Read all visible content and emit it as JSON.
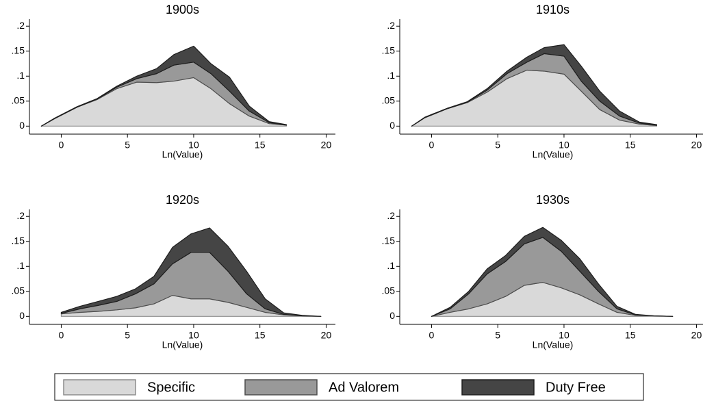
{
  "chart_data": [
    {
      "type": "area",
      "stacked": true,
      "title": "1900s",
      "xlabel": "Ln(Value)",
      "x": [
        -1.5,
        -0.5,
        1.2,
        2.7,
        4.2,
        5.7,
        7.2,
        8.5,
        10,
        11.3,
        12.7,
        14.2,
        15.7,
        17
      ],
      "series": [
        {
          "name": "Specific",
          "color": "#d9d9d9",
          "values": [
            0,
            0.015,
            0.038,
            0.053,
            0.075,
            0.088,
            0.087,
            0.09,
            0.097,
            0.075,
            0.045,
            0.02,
            0.005,
            0.002
          ]
        },
        {
          "name": "Ad Valorem",
          "color": "#999999",
          "values": [
            0,
            0,
            0,
            0.001,
            0.003,
            0.007,
            0.018,
            0.032,
            0.031,
            0.03,
            0.025,
            0.01,
            0.002,
            0
          ]
        },
        {
          "name": "Duty Free",
          "color": "#454545",
          "values": [
            0,
            0.001,
            0.001,
            0.001,
            0.002,
            0.005,
            0.01,
            0.021,
            0.032,
            0.02,
            0.028,
            0.01,
            0.002,
            0.001
          ]
        }
      ],
      "xlim": [
        -2.4,
        20.7
      ],
      "xticks": [
        0,
        5,
        10,
        15,
        20
      ],
      "ylim": [
        -0.016,
        0.214
      ],
      "yticks": [
        0,
        {
          "value": 0.05,
          "label": ".05"
        },
        {
          "value": 0.1,
          "label": ".1"
        },
        {
          "value": 0.15,
          "label": ".15"
        },
        {
          "value": 0.2,
          "label": ".2"
        }
      ]
    },
    {
      "type": "area",
      "stacked": true,
      "title": "1910s",
      "xlabel": "Ln(Value)",
      "x": [
        -1.5,
        -0.5,
        1.2,
        2.7,
        4.2,
        5.7,
        7.2,
        8.5,
        10,
        11.3,
        12.7,
        14.2,
        15.7,
        17
      ],
      "series": [
        {
          "name": "Specific",
          "color": "#d9d9d9",
          "values": [
            0,
            0.017,
            0.035,
            0.047,
            0.068,
            0.095,
            0.112,
            0.11,
            0.104,
            0.07,
            0.033,
            0.012,
            0.004,
            0.001
          ]
        },
        {
          "name": "Ad Valorem",
          "color": "#999999",
          "values": [
            0,
            0,
            0,
            0.001,
            0.004,
            0.01,
            0.016,
            0.035,
            0.036,
            0.02,
            0.017,
            0.008,
            0.002,
            0.001
          ]
        },
        {
          "name": "Duty Free",
          "color": "#454545",
          "values": [
            0,
            0.001,
            0.001,
            0.001,
            0.003,
            0.005,
            0.01,
            0.012,
            0.023,
            0.03,
            0.02,
            0.01,
            0.002,
            0.001
          ]
        }
      ],
      "xlim": [
        -2.4,
        20.7
      ],
      "xticks": [
        0,
        5,
        10,
        15,
        20
      ],
      "ylim": [
        -0.016,
        0.214
      ],
      "yticks": [
        0,
        {
          "value": 0.05,
          "label": ".05"
        },
        {
          "value": 0.1,
          "label": ".1"
        },
        {
          "value": 0.15,
          "label": ".15"
        },
        {
          "value": 0.2,
          "label": ".2"
        }
      ]
    },
    {
      "type": "area",
      "stacked": true,
      "title": "1920s",
      "xlabel": "Ln(Value)",
      "x": [
        0,
        1.4,
        2.8,
        4.2,
        5.6,
        7,
        8.4,
        9.8,
        11.2,
        12.6,
        14,
        15.4,
        16.8,
        18.2,
        19.6
      ],
      "series": [
        {
          "name": "Specific",
          "color": "#d9d9d9",
          "values": [
            0.005,
            0.008,
            0.01,
            0.013,
            0.017,
            0.025,
            0.042,
            0.035,
            0.035,
            0.028,
            0.018,
            0.008,
            0.003,
            0.001,
            0
          ]
        },
        {
          "name": "Ad Valorem",
          "color": "#999999",
          "values": [
            0.001,
            0.007,
            0.012,
            0.017,
            0.028,
            0.04,
            0.063,
            0.093,
            0.093,
            0.062,
            0.027,
            0.007,
            0.001,
            0,
            0
          ]
        },
        {
          "name": "Duty Free",
          "color": "#454545",
          "values": [
            0.002,
            0.005,
            0.008,
            0.01,
            0.01,
            0.015,
            0.033,
            0.037,
            0.049,
            0.05,
            0.045,
            0.02,
            0.003,
            0.001,
            0
          ]
        }
      ],
      "xlim": [
        -2.4,
        20.7
      ],
      "xticks": [
        0,
        5,
        10,
        15,
        20
      ],
      "ylim": [
        -0.016,
        0.214
      ],
      "yticks": [
        0,
        {
          "value": 0.05,
          "label": ".05"
        },
        {
          "value": 0.1,
          "label": ".1"
        },
        {
          "value": 0.15,
          "label": ".15"
        },
        {
          "value": 0.2,
          "label": ".2"
        }
      ]
    },
    {
      "type": "area",
      "stacked": true,
      "title": "1930s",
      "xlabel": "Ln(Value)",
      "x": [
        0,
        1.4,
        2.8,
        4.2,
        5.6,
        7,
        8.4,
        9.8,
        11.2,
        12.6,
        14,
        15.4,
        16.8,
        18.2
      ],
      "series": [
        {
          "name": "Specific",
          "color": "#d9d9d9",
          "values": [
            0,
            0.008,
            0.015,
            0.025,
            0.04,
            0.062,
            0.068,
            0.057,
            0.043,
            0.025,
            0.008,
            0.002,
            0.001,
            0
          ]
        },
        {
          "name": "Ad Valorem",
          "color": "#999999",
          "values": [
            0,
            0.007,
            0.03,
            0.06,
            0.07,
            0.083,
            0.09,
            0.073,
            0.047,
            0.025,
            0.007,
            0.001,
            0,
            0
          ]
        },
        {
          "name": "Duty Free",
          "color": "#454545",
          "values": [
            0,
            0.003,
            0.005,
            0.01,
            0.012,
            0.015,
            0.02,
            0.022,
            0.025,
            0.015,
            0.005,
            0.001,
            0,
            0
          ]
        }
      ],
      "xlim": [
        -2.4,
        20.7
      ],
      "xticks": [
        0,
        5,
        10,
        15,
        20
      ],
      "ylim": [
        -0.016,
        0.214
      ],
      "yticks": [
        0,
        {
          "value": 0.05,
          "label": ".05"
        },
        {
          "value": 0.1,
          "label": ".1"
        },
        {
          "value": 0.15,
          "label": ".15"
        },
        {
          "value": 0.2,
          "label": ".2"
        }
      ]
    }
  ]
}
